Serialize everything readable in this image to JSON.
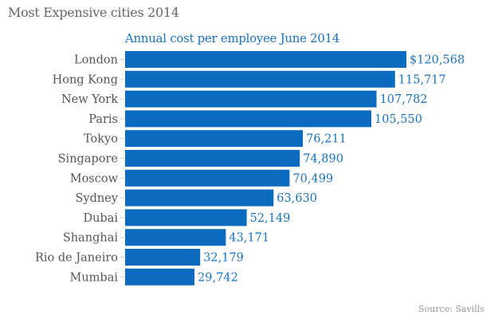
{
  "chart_data": {
    "type": "bar",
    "orientation": "horizontal",
    "title": "Most Expensive cities 2014",
    "subtitle": "Annual cost per employee June 2014",
    "source": "Source: Savills",
    "categories": [
      "London",
      "Hong Kong",
      "New York",
      "Paris",
      "Tokyo",
      "Singapore",
      "Moscow",
      "Sydney",
      "Dubai",
      "Shanghai",
      "Rio de Janeiro",
      "Mumbai"
    ],
    "values": [
      120568,
      115717,
      107782,
      105550,
      76211,
      74890,
      70499,
      63630,
      52149,
      43171,
      32179,
      29742
    ],
    "value_labels": [
      "$120,568",
      "115,717",
      "107,782",
      "105,550",
      "76,211",
      "74,890",
      "70,499",
      "63,630",
      "52,149",
      "43,171",
      "32,179",
      "29,742"
    ],
    "xlim": [
      0,
      120568
    ],
    "grid": false,
    "bar_color": "#0b6bbf"
  }
}
